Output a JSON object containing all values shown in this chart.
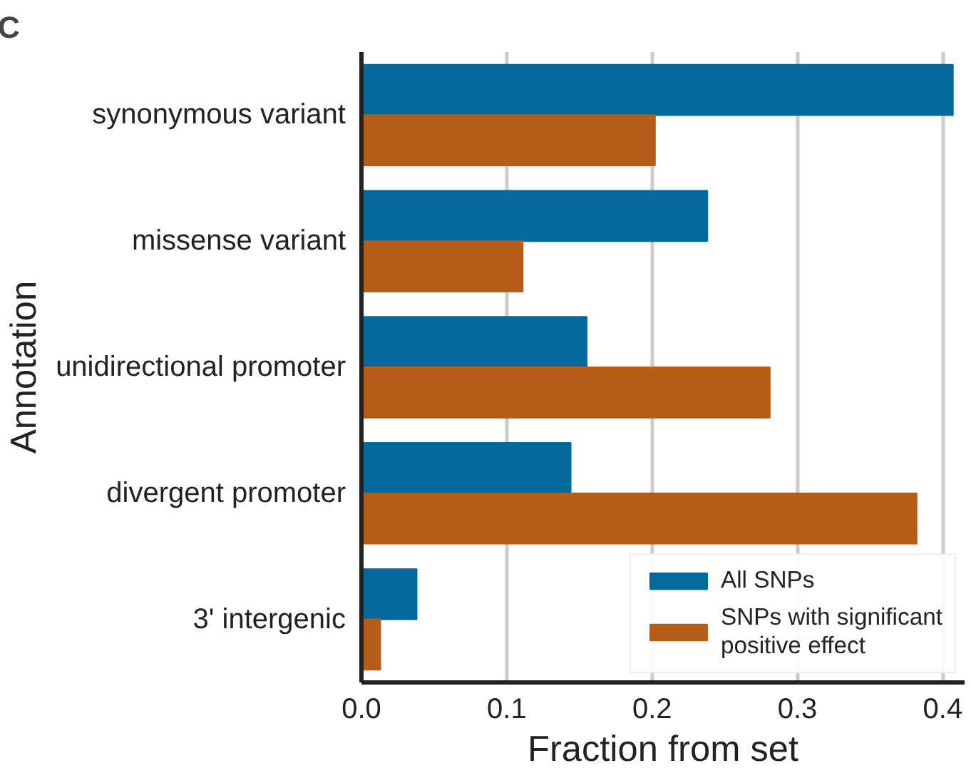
{
  "chart_data": {
    "type": "bar",
    "orientation": "horizontal",
    "xlabel": "Fraction from set",
    "ylabel": "Annotation",
    "annotations": [
      "C"
    ],
    "categories": [
      "synonymous variant",
      "missense variant",
      "unidirectional promoter",
      "divergent promoter",
      "3' intergenic"
    ],
    "series": [
      {
        "name": "All SNPs",
        "color": "#046a9e",
        "values": [
          0.407,
          0.238,
          0.155,
          0.144,
          0.038
        ]
      },
      {
        "name": "SNPs with significant positive effect",
        "color": "#b65e18",
        "values": [
          0.202,
          0.111,
          0.281,
          0.382,
          0.013
        ]
      }
    ],
    "xlim": [
      0,
      0.415
    ],
    "xticks": [
      {
        "value": 0,
        "label": "0.0"
      },
      0.1,
      0.2,
      0.3,
      0.4
    ],
    "grid": "x",
    "legend": "bottom right"
  }
}
